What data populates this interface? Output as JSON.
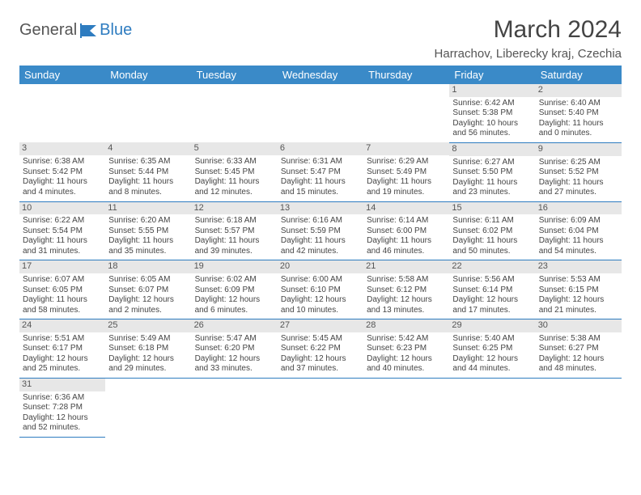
{
  "brand": {
    "general": "General",
    "blue": "Blue"
  },
  "title": "March 2024",
  "location": "Harrachov, Liberecky kraj, Czechia",
  "colors": {
    "header_bg": "#3a8ac8",
    "border": "#2e7cc0",
    "daynum_bg": "#e7e7e7",
    "text": "#444444"
  },
  "dows": [
    "Sunday",
    "Monday",
    "Tuesday",
    "Wednesday",
    "Thursday",
    "Friday",
    "Saturday"
  ],
  "weeks": [
    [
      null,
      null,
      null,
      null,
      null,
      {
        "n": "1",
        "sr": "Sunrise: 6:42 AM",
        "ss": "Sunset: 5:38 PM",
        "d1": "Daylight: 10 hours",
        "d2": "and 56 minutes."
      },
      {
        "n": "2",
        "sr": "Sunrise: 6:40 AM",
        "ss": "Sunset: 5:40 PM",
        "d1": "Daylight: 11 hours",
        "d2": "and 0 minutes."
      }
    ],
    [
      {
        "n": "3",
        "sr": "Sunrise: 6:38 AM",
        "ss": "Sunset: 5:42 PM",
        "d1": "Daylight: 11 hours",
        "d2": "and 4 minutes."
      },
      {
        "n": "4",
        "sr": "Sunrise: 6:35 AM",
        "ss": "Sunset: 5:44 PM",
        "d1": "Daylight: 11 hours",
        "d2": "and 8 minutes."
      },
      {
        "n": "5",
        "sr": "Sunrise: 6:33 AM",
        "ss": "Sunset: 5:45 PM",
        "d1": "Daylight: 11 hours",
        "d2": "and 12 minutes."
      },
      {
        "n": "6",
        "sr": "Sunrise: 6:31 AM",
        "ss": "Sunset: 5:47 PM",
        "d1": "Daylight: 11 hours",
        "d2": "and 15 minutes."
      },
      {
        "n": "7",
        "sr": "Sunrise: 6:29 AM",
        "ss": "Sunset: 5:49 PM",
        "d1": "Daylight: 11 hours",
        "d2": "and 19 minutes."
      },
      {
        "n": "8",
        "sr": "Sunrise: 6:27 AM",
        "ss": "Sunset: 5:50 PM",
        "d1": "Daylight: 11 hours",
        "d2": "and 23 minutes."
      },
      {
        "n": "9",
        "sr": "Sunrise: 6:25 AM",
        "ss": "Sunset: 5:52 PM",
        "d1": "Daylight: 11 hours",
        "d2": "and 27 minutes."
      }
    ],
    [
      {
        "n": "10",
        "sr": "Sunrise: 6:22 AM",
        "ss": "Sunset: 5:54 PM",
        "d1": "Daylight: 11 hours",
        "d2": "and 31 minutes."
      },
      {
        "n": "11",
        "sr": "Sunrise: 6:20 AM",
        "ss": "Sunset: 5:55 PM",
        "d1": "Daylight: 11 hours",
        "d2": "and 35 minutes."
      },
      {
        "n": "12",
        "sr": "Sunrise: 6:18 AM",
        "ss": "Sunset: 5:57 PM",
        "d1": "Daylight: 11 hours",
        "d2": "and 39 minutes."
      },
      {
        "n": "13",
        "sr": "Sunrise: 6:16 AM",
        "ss": "Sunset: 5:59 PM",
        "d1": "Daylight: 11 hours",
        "d2": "and 42 minutes."
      },
      {
        "n": "14",
        "sr": "Sunrise: 6:14 AM",
        "ss": "Sunset: 6:00 PM",
        "d1": "Daylight: 11 hours",
        "d2": "and 46 minutes."
      },
      {
        "n": "15",
        "sr": "Sunrise: 6:11 AM",
        "ss": "Sunset: 6:02 PM",
        "d1": "Daylight: 11 hours",
        "d2": "and 50 minutes."
      },
      {
        "n": "16",
        "sr": "Sunrise: 6:09 AM",
        "ss": "Sunset: 6:04 PM",
        "d1": "Daylight: 11 hours",
        "d2": "and 54 minutes."
      }
    ],
    [
      {
        "n": "17",
        "sr": "Sunrise: 6:07 AM",
        "ss": "Sunset: 6:05 PM",
        "d1": "Daylight: 11 hours",
        "d2": "and 58 minutes."
      },
      {
        "n": "18",
        "sr": "Sunrise: 6:05 AM",
        "ss": "Sunset: 6:07 PM",
        "d1": "Daylight: 12 hours",
        "d2": "and 2 minutes."
      },
      {
        "n": "19",
        "sr": "Sunrise: 6:02 AM",
        "ss": "Sunset: 6:09 PM",
        "d1": "Daylight: 12 hours",
        "d2": "and 6 minutes."
      },
      {
        "n": "20",
        "sr": "Sunrise: 6:00 AM",
        "ss": "Sunset: 6:10 PM",
        "d1": "Daylight: 12 hours",
        "d2": "and 10 minutes."
      },
      {
        "n": "21",
        "sr": "Sunrise: 5:58 AM",
        "ss": "Sunset: 6:12 PM",
        "d1": "Daylight: 12 hours",
        "d2": "and 13 minutes."
      },
      {
        "n": "22",
        "sr": "Sunrise: 5:56 AM",
        "ss": "Sunset: 6:14 PM",
        "d1": "Daylight: 12 hours",
        "d2": "and 17 minutes."
      },
      {
        "n": "23",
        "sr": "Sunrise: 5:53 AM",
        "ss": "Sunset: 6:15 PM",
        "d1": "Daylight: 12 hours",
        "d2": "and 21 minutes."
      }
    ],
    [
      {
        "n": "24",
        "sr": "Sunrise: 5:51 AM",
        "ss": "Sunset: 6:17 PM",
        "d1": "Daylight: 12 hours",
        "d2": "and 25 minutes."
      },
      {
        "n": "25",
        "sr": "Sunrise: 5:49 AM",
        "ss": "Sunset: 6:18 PM",
        "d1": "Daylight: 12 hours",
        "d2": "and 29 minutes."
      },
      {
        "n": "26",
        "sr": "Sunrise: 5:47 AM",
        "ss": "Sunset: 6:20 PM",
        "d1": "Daylight: 12 hours",
        "d2": "and 33 minutes."
      },
      {
        "n": "27",
        "sr": "Sunrise: 5:45 AM",
        "ss": "Sunset: 6:22 PM",
        "d1": "Daylight: 12 hours",
        "d2": "and 37 minutes."
      },
      {
        "n": "28",
        "sr": "Sunrise: 5:42 AM",
        "ss": "Sunset: 6:23 PM",
        "d1": "Daylight: 12 hours",
        "d2": "and 40 minutes."
      },
      {
        "n": "29",
        "sr": "Sunrise: 5:40 AM",
        "ss": "Sunset: 6:25 PM",
        "d1": "Daylight: 12 hours",
        "d2": "and 44 minutes."
      },
      {
        "n": "30",
        "sr": "Sunrise: 5:38 AM",
        "ss": "Sunset: 6:27 PM",
        "d1": "Daylight: 12 hours",
        "d2": "and 48 minutes."
      }
    ],
    [
      {
        "n": "31",
        "sr": "Sunrise: 6:36 AM",
        "ss": "Sunset: 7:28 PM",
        "d1": "Daylight: 12 hours",
        "d2": "and 52 minutes."
      },
      null,
      null,
      null,
      null,
      null,
      null
    ]
  ]
}
